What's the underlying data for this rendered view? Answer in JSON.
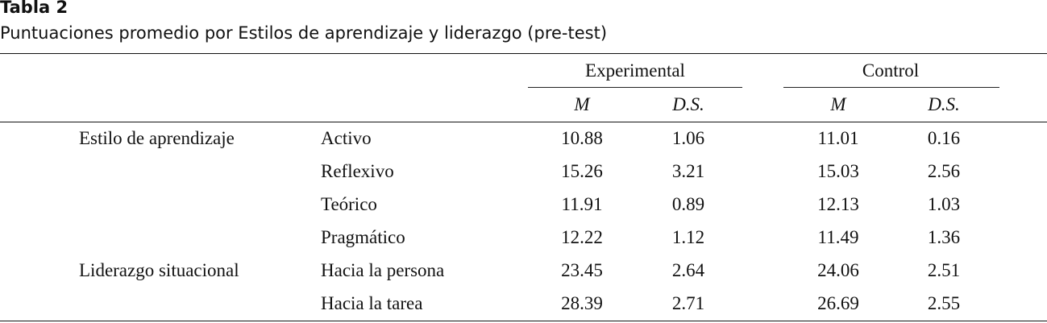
{
  "caption": {
    "label": "Tabla 2",
    "title": "Puntuaciones promedio por Estilos de aprendizaje y liderazgo (pre-test)"
  },
  "table": {
    "group_headers": [
      "Experimental",
      "Control"
    ],
    "sub_headers": [
      "M",
      "D.S.",
      "M",
      "D.S."
    ],
    "categories": [
      "Estilo de aprendizaje",
      "Liderazgo situacional"
    ],
    "rows": [
      {
        "category": "Estilo de aprendizaje",
        "item": "Activo",
        "exp_m": "10.88",
        "exp_sd": "1.06",
        "ctl_m": "11.01",
        "ctl_sd": "0.16"
      },
      {
        "category": "",
        "item": "Reflexivo",
        "exp_m": "15.26",
        "exp_sd": "3.21",
        "ctl_m": "15.03",
        "ctl_sd": "2.56"
      },
      {
        "category": "",
        "item": "Teórico",
        "exp_m": "11.91",
        "exp_sd": "0.89",
        "ctl_m": "12.13",
        "ctl_sd": "1.03"
      },
      {
        "category": "",
        "item": "Pragmático",
        "exp_m": "12.22",
        "exp_sd": "1.12",
        "ctl_m": "11.49",
        "ctl_sd": "1.36"
      },
      {
        "category": "Liderazgo situacional",
        "item": "Hacia la persona",
        "exp_m": "23.45",
        "exp_sd": "2.64",
        "ctl_m": "24.06",
        "ctl_sd": "2.51"
      },
      {
        "category": "",
        "item": "Hacia la tarea",
        "exp_m": "28.39",
        "exp_sd": "2.71",
        "ctl_m": "26.69",
        "ctl_sd": "2.55"
      }
    ]
  }
}
